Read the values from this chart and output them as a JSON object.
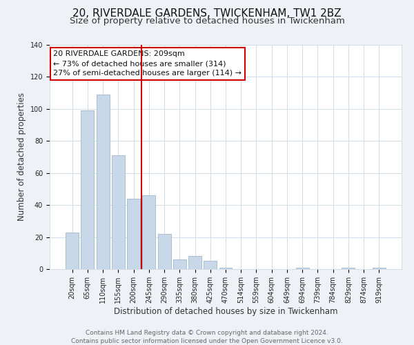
{
  "title": "20, RIVERDALE GARDENS, TWICKENHAM, TW1 2BZ",
  "subtitle": "Size of property relative to detached houses in Twickenham",
  "xlabel": "Distribution of detached houses by size in Twickenham",
  "ylabel": "Number of detached properties",
  "categories": [
    "20sqm",
    "65sqm",
    "110sqm",
    "155sqm",
    "200sqm",
    "245sqm",
    "290sqm",
    "335sqm",
    "380sqm",
    "425sqm",
    "470sqm",
    "514sqm",
    "559sqm",
    "604sqm",
    "649sqm",
    "694sqm",
    "739sqm",
    "784sqm",
    "829sqm",
    "874sqm",
    "919sqm"
  ],
  "values": [
    23,
    99,
    109,
    71,
    44,
    46,
    22,
    6,
    8,
    5,
    1,
    0,
    0,
    0,
    0,
    1,
    0,
    0,
    1,
    0,
    1
  ],
  "bar_color": "#c8d8e8",
  "bar_edge_color": "#a0b8cc",
  "vline_x": 4.5,
  "vline_color": "#cc0000",
  "annotation_line1": "20 RIVERDALE GARDENS: 209sqm",
  "annotation_line2": "← 73% of detached houses are smaller (314)",
  "annotation_line3": "27% of semi-detached houses are larger (114) →",
  "annotation_box_color": "#ffffff",
  "annotation_box_edge": "#cc0000",
  "ylim": [
    0,
    140
  ],
  "yticks": [
    0,
    20,
    40,
    60,
    80,
    100,
    120,
    140
  ],
  "footer_text": "Contains HM Land Registry data © Crown copyright and database right 2024.\nContains public sector information licensed under the Open Government Licence v3.0.",
  "bg_color": "#eef2f6",
  "plot_bg_color": "#ffffff",
  "grid_color": "#d0dce8",
  "title_fontsize": 11,
  "subtitle_fontsize": 9.5,
  "axis_label_fontsize": 8.5,
  "tick_fontsize": 7,
  "footer_fontsize": 6.5,
  "annotation_fontsize": 8
}
